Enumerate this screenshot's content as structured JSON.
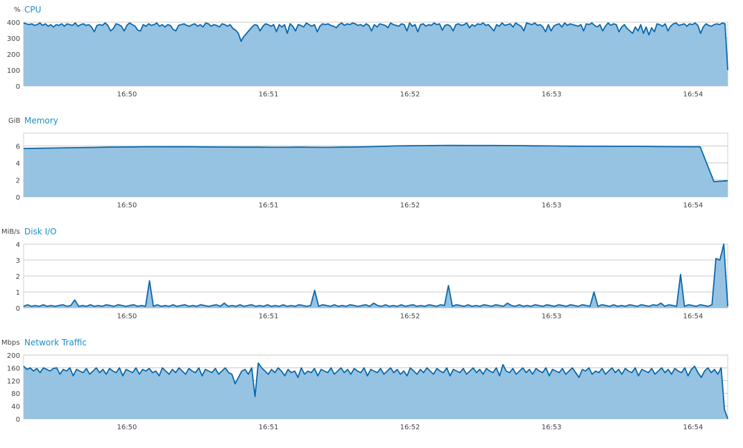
{
  "panels": [
    {
      "title": "CPU",
      "unit": "%"
    },
    {
      "title": "Memory",
      "unit": "GiB"
    },
    {
      "title": "Disk I/O",
      "unit": "MiB/s"
    },
    {
      "title": "Network Traffic",
      "unit": "Mbps"
    }
  ],
  "colors": {
    "line": "#0868ac",
    "fill": "#97c3e2",
    "grid": "#c8c8c8",
    "title": "#1a8fc7"
  },
  "chart_data": [
    {
      "type": "area",
      "title": "CPU",
      "ylabel": "%",
      "ylim": [
        0,
        400
      ],
      "yticks": [
        0,
        100,
        200,
        300,
        400
      ],
      "xticks": [
        "16:50",
        "16:51",
        "16:52",
        "16:53",
        "16:54"
      ],
      "series": [
        {
          "values": [
            395,
            390,
            385,
            390,
            380,
            385,
            395,
            380,
            390,
            375,
            385,
            370,
            385,
            380,
            390,
            375,
            390,
            385,
            380,
            395,
            375,
            385,
            390,
            380,
            385,
            370,
            340,
            380,
            385,
            380,
            395,
            380,
            345,
            360,
            390,
            385,
            375,
            345,
            380,
            395,
            385,
            375,
            350,
            345,
            385,
            375,
            390,
            380,
            385,
            395,
            375,
            385,
            370,
            385,
            380,
            355,
            345,
            380,
            385,
            390,
            380,
            375,
            385,
            390,
            375,
            385,
            370,
            395,
            390,
            375,
            385,
            380,
            370,
            390,
            385,
            375,
            385,
            360,
            350,
            330,
            280,
            310,
            330,
            350,
            370,
            385,
            380,
            345,
            375,
            390,
            385,
            375,
            385,
            340,
            385,
            370,
            385,
            330,
            390,
            375,
            345,
            385,
            380,
            370,
            395,
            385,
            375,
            385,
            340,
            375,
            390,
            385,
            390,
            380,
            375,
            365,
            385,
            395,
            380,
            390,
            385,
            395,
            390,
            380,
            385,
            375,
            390,
            380,
            345,
            385,
            370,
            390,
            385,
            380,
            365,
            395,
            385,
            380,
            375,
            390,
            385,
            345,
            395,
            375,
            385,
            340,
            385,
            390,
            375,
            385,
            380,
            395,
            385,
            390,
            350,
            380,
            385,
            375,
            345,
            385,
            390,
            380,
            385,
            395,
            365,
            385,
            375,
            390,
            385,
            395,
            380,
            385,
            365,
            345,
            385,
            375,
            395,
            380,
            385,
            390,
            370,
            395,
            385,
            375,
            345,
            395,
            390,
            385,
            395,
            380,
            385,
            370,
            340,
            385,
            345,
            375,
            385,
            390,
            370,
            395,
            380,
            390,
            385,
            380,
            375,
            385,
            345,
            390,
            385,
            395,
            380,
            370,
            385,
            345,
            375,
            395,
            380,
            390,
            385,
            340,
            370,
            385,
            360,
            345,
            330,
            370,
            345,
            385,
            330,
            370,
            320,
            365,
            340,
            390,
            385,
            375,
            390,
            345,
            375,
            390,
            395,
            380,
            385,
            390,
            375,
            390,
            385,
            395,
            380,
            330,
            370,
            390,
            380,
            375,
            385,
            390,
            385,
            395,
            390,
            100
          ]
        }
      ]
    },
    {
      "type": "area",
      "title": "Memory",
      "ylabel": "GiB",
      "ylim": [
        0,
        7.5
      ],
      "yticks": [
        0,
        2,
        4,
        6
      ],
      "xticks": [
        "16:50",
        "16:51",
        "16:52",
        "16:53",
        "16:54"
      ],
      "series": [
        {
          "values": [
            5.7,
            5.72,
            5.75,
            5.78,
            5.8,
            5.82,
            5.85,
            5.87,
            5.88,
            5.9,
            5.9,
            5.89,
            5.9,
            5.88,
            5.87,
            5.86,
            5.85,
            5.85,
            5.84,
            5.84,
            5.85,
            5.84,
            5.83,
            5.85,
            5.87,
            5.9,
            5.95,
            6.0,
            6.02,
            6.03,
            6.05,
            6.06,
            6.05,
            6.05,
            6.05,
            6.04,
            6.03,
            6.01,
            6.0,
            5.98,
            5.97,
            5.96,
            5.96,
            5.95,
            5.95,
            5.94,
            5.92,
            5.91,
            5.9,
            5.9,
            1.8,
            1.9
          ]
        }
      ]
    },
    {
      "type": "area",
      "title": "Disk I/O",
      "ylabel": "MiB/s",
      "ylim": [
        0,
        4
      ],
      "yticks": [
        0,
        1,
        2,
        3,
        4
      ],
      "xticks": [
        "16:50",
        "16:51",
        "16:52",
        "16:53",
        "16:54"
      ],
      "series": [
        {
          "values": [
            0.1,
            0.2,
            0.1,
            0.15,
            0.1,
            0.2,
            0.1,
            0.15,
            0.1,
            0.15,
            0.2,
            0.1,
            0.15,
            0.5,
            0.1,
            0.15,
            0.1,
            0.2,
            0.1,
            0.15,
            0.1,
            0.2,
            0.15,
            0.1,
            0.2,
            0.15,
            0.1,
            0.15,
            0.2,
            0.1,
            0.15,
            0.1,
            1.7,
            0.1,
            0.2,
            0.1,
            0.15,
            0.1,
            0.2,
            0.1,
            0.15,
            0.2,
            0.1,
            0.15,
            0.1,
            0.2,
            0.15,
            0.1,
            0.15,
            0.2,
            0.1,
            0.3,
            0.1,
            0.15,
            0.1,
            0.2,
            0.1,
            0.15,
            0.2,
            0.1,
            0.15,
            0.1,
            0.2,
            0.1,
            0.15,
            0.1,
            0.2,
            0.1,
            0.15,
            0.1,
            0.2,
            0.15,
            0.1,
            0.15,
            1.1,
            0.1,
            0.2,
            0.15,
            0.1,
            0.2,
            0.1,
            0.15,
            0.1,
            0.2,
            0.15,
            0.1,
            0.15,
            0.2,
            0.1,
            0.3,
            0.15,
            0.1,
            0.2,
            0.1,
            0.15,
            0.1,
            0.2,
            0.1,
            0.15,
            0.2,
            0.1,
            0.15,
            0.1,
            0.2,
            0.15,
            0.1,
            0.2,
            0.15,
            1.4,
            0.1,
            0.2,
            0.15,
            0.1,
            0.2,
            0.1,
            0.15,
            0.1,
            0.2,
            0.15,
            0.1,
            0.2,
            0.15,
            0.1,
            0.3,
            0.15,
            0.1,
            0.2,
            0.1,
            0.15,
            0.1,
            0.2,
            0.15,
            0.1,
            0.2,
            0.15,
            0.1,
            0.2,
            0.15,
            0.1,
            0.2,
            0.15,
            0.1,
            0.2,
            0.15,
            0.1,
            1.0,
            0.1,
            0.2,
            0.15,
            0.1,
            0.2,
            0.1,
            0.15,
            0.1,
            0.2,
            0.15,
            0.1,
            0.2,
            0.15,
            0.1,
            0.2,
            0.15,
            0.3,
            0.1,
            0.2,
            0.15,
            0.1,
            2.1,
            0.1,
            0.2,
            0.15,
            0.1,
            0.2,
            0.15,
            0.1,
            0.2,
            3.1,
            3.0,
            4.0,
            0.1
          ]
        }
      ]
    },
    {
      "type": "area",
      "title": "Network Traffic",
      "ylabel": "Mbps",
      "ylim": [
        0,
        200
      ],
      "yticks": [
        0,
        40,
        80,
        120,
        160,
        200
      ],
      "xticks": [
        "16:50",
        "16:51",
        "16:52",
        "16:53",
        "16:54"
      ],
      "series": [
        {
          "values": [
            165,
            155,
            160,
            150,
            158,
            145,
            160,
            155,
            150,
            158,
            160,
            140,
            155,
            150,
            160,
            135,
            155,
            150,
            145,
            158,
            140,
            150,
            160,
            145,
            155,
            140,
            158,
            150,
            145,
            160,
            135,
            155,
            150,
            145,
            160,
            140,
            155,
            150,
            158,
            145,
            150,
            135,
            160,
            150,
            140,
            155,
            145,
            160,
            150,
            140,
            158,
            150,
            145,
            160,
            135,
            155,
            150,
            145,
            158,
            140,
            150,
            160,
            145,
            140,
            110,
            130,
            150,
            155,
            140,
            160,
            70,
            175,
            160,
            150,
            140,
            155,
            145,
            160,
            150,
            135,
            155,
            145,
            150,
            130,
            160,
            140,
            150,
            145,
            158,
            135,
            155,
            150,
            145,
            160,
            140,
            150,
            160,
            145,
            155,
            140,
            158,
            150,
            145,
            160,
            135,
            155,
            150,
            145,
            158,
            140,
            150,
            160,
            145,
            155,
            140,
            150,
            135,
            160,
            150,
            140,
            155,
            145,
            160,
            150,
            140,
            158,
            150,
            145,
            160,
            135,
            155,
            150,
            145,
            158,
            140,
            150,
            160,
            145,
            155,
            140,
            158,
            150,
            145,
            160,
            135,
            170,
            150,
            145,
            158,
            140,
            150,
            160,
            145,
            155,
            140,
            158,
            150,
            145,
            160,
            135,
            155,
            150,
            145,
            158,
            140,
            150,
            160,
            145,
            130,
            155,
            150,
            160,
            140,
            150,
            145,
            158,
            140,
            150,
            160,
            145,
            155,
            140,
            158,
            150,
            145,
            160,
            135,
            155,
            150,
            145,
            158,
            140,
            150,
            160,
            145,
            155,
            140,
            158,
            150,
            145,
            160,
            135,
            155,
            165,
            145,
            130,
            150,
            160,
            145,
            155,
            140,
            160,
            30,
            0
          ]
        }
      ]
    }
  ]
}
